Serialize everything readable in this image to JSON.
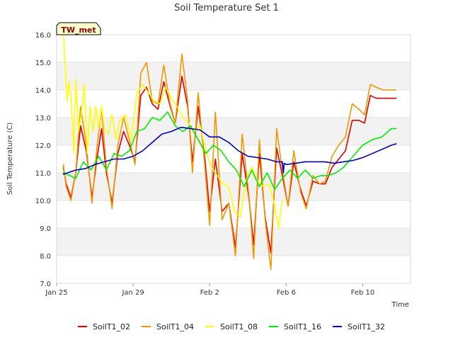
{
  "chart_data": {
    "type": "line",
    "title": "Soil Temperature Set 1",
    "xlabel": "Time",
    "ylabel": "Soil Temperature (C)",
    "badge": "TW_met",
    "ylim": [
      7.0,
      16.0
    ],
    "yticks": [
      "7.0",
      "8.0",
      "9.0",
      "10.0",
      "11.0",
      "12.0",
      "13.0",
      "14.0",
      "15.0",
      "16.0"
    ],
    "xlim": [
      0,
      18.5
    ],
    "xticks": [
      {
        "x": 0,
        "label": "Jan 25"
      },
      {
        "x": 4,
        "label": "Jan 29"
      },
      {
        "x": 8,
        "label": "Feb 2"
      },
      {
        "x": 12,
        "label": "Feb 6"
      },
      {
        "x": 16,
        "label": "Feb 10"
      }
    ],
    "grid": true,
    "legend_position": "bottom",
    "series": [
      {
        "name": "SoilT1_02",
        "color": "#dd0000",
        "x": [
          0.35,
          0.5,
          0.75,
          1.0,
          1.25,
          1.55,
          1.85,
          2.1,
          2.35,
          2.6,
          2.9,
          3.2,
          3.5,
          3.8,
          4.1,
          4.4,
          4.7,
          5.0,
          5.3,
          5.6,
          5.9,
          6.2,
          6.55,
          6.85,
          7.1,
          7.4,
          7.75,
          8.0,
          8.3,
          8.65,
          9.0,
          9.35,
          9.7,
          10.05,
          10.3,
          10.6,
          10.9,
          11.2,
          11.5,
          11.8,
          12.1,
          12.4,
          12.75,
          13.05,
          13.4,
          13.75,
          14.05,
          14.4,
          14.75,
          15.1,
          15.45,
          15.8,
          16.1,
          16.4,
          16.7,
          17.05,
          17.4,
          17.75
        ],
        "values": [
          11.2,
          10.6,
          10.1,
          11.0,
          12.7,
          11.8,
          10.1,
          11.5,
          12.6,
          11.0,
          9.9,
          11.7,
          12.5,
          12.0,
          11.4,
          13.8,
          14.1,
          13.5,
          13.3,
          14.3,
          13.5,
          12.8,
          14.5,
          13.4,
          11.4,
          13.4,
          11.5,
          9.6,
          11.5,
          9.6,
          9.9,
          8.3,
          11.7,
          10.1,
          8.4,
          11.7,
          9.4,
          8.1,
          11.9,
          10.9,
          9.8,
          11.4,
          10.4,
          9.8,
          10.7,
          10.6,
          10.6,
          11.2,
          11.5,
          11.8,
          12.9,
          12.9,
          12.8,
          13.8,
          13.7,
          13.7,
          13.7,
          13.7
        ]
      },
      {
        "name": "SoilT1_04",
        "color": "#ee9900",
        "x": [
          0.35,
          0.5,
          0.75,
          1.0,
          1.25,
          1.55,
          1.85,
          2.1,
          2.35,
          2.6,
          2.9,
          3.2,
          3.5,
          3.8,
          4.1,
          4.4,
          4.7,
          5.0,
          5.3,
          5.6,
          5.9,
          6.2,
          6.55,
          6.85,
          7.1,
          7.4,
          7.75,
          8.0,
          8.3,
          8.65,
          9.0,
          9.35,
          9.7,
          10.05,
          10.3,
          10.6,
          10.9,
          11.2,
          11.5,
          11.8,
          12.1,
          12.4,
          12.75,
          13.05,
          13.4,
          13.75,
          14.05,
          14.4,
          14.75,
          15.1,
          15.45,
          15.8,
          16.1,
          16.4,
          16.7,
          17.05,
          17.4,
          17.75
        ],
        "values": [
          11.3,
          10.5,
          10.0,
          11.0,
          13.4,
          12.0,
          9.9,
          11.9,
          13.3,
          11.2,
          9.7,
          12.0,
          13.0,
          12.2,
          11.3,
          14.6,
          15.0,
          13.6,
          13.5,
          14.9,
          13.6,
          12.8,
          15.3,
          13.6,
          11.0,
          13.9,
          11.2,
          9.1,
          13.2,
          9.3,
          9.9,
          8.0,
          12.4,
          10.2,
          7.9,
          12.2,
          9.3,
          7.5,
          12.6,
          11.1,
          9.8,
          11.8,
          10.3,
          9.7,
          10.9,
          10.6,
          10.7,
          11.6,
          12.0,
          12.3,
          13.5,
          13.3,
          13.1,
          14.2,
          14.1,
          14.0,
          14.0,
          14.0
        ]
      },
      {
        "name": "SoilT1_08",
        "color": "#ffff00",
        "x": [
          0.35,
          0.45,
          0.55,
          0.65,
          0.75,
          0.9,
          1.0,
          1.15,
          1.3,
          1.45,
          1.6,
          1.75,
          1.9,
          2.05,
          2.2,
          2.35,
          2.5,
          2.7,
          2.9,
          3.1,
          3.3,
          3.6,
          3.9,
          4.2,
          4.5,
          4.8,
          5.1,
          5.4,
          5.7,
          6.0,
          6.3,
          6.6,
          6.9,
          7.2,
          7.5,
          7.8,
          8.1,
          8.4,
          8.7,
          9.0,
          9.3,
          9.6,
          9.9,
          10.2,
          10.5,
          10.8,
          11.1,
          11.4,
          11.6,
          11.8
        ],
        "values": [
          16.0,
          14.8,
          13.6,
          14.3,
          13.7,
          11.7,
          14.4,
          12.5,
          13.2,
          14.2,
          11.7,
          13.4,
          12.5,
          13.4,
          12.6,
          13.4,
          12.6,
          12.4,
          13.1,
          12.2,
          12.9,
          13.1,
          12.2,
          13.9,
          14.2,
          13.9,
          13.6,
          13.5,
          14.1,
          13.7,
          13.4,
          13.0,
          12.8,
          12.5,
          12.7,
          11.8,
          11.2,
          10.9,
          10.6,
          10.5,
          9.6,
          9.4,
          10.7,
          11.2,
          10.7,
          10.5,
          10.6,
          9.8,
          9.0,
          10.0
        ]
      },
      {
        "name": "SoilT1_16",
        "color": "#00ee00",
        "x": [
          0.35,
          0.7,
          1.0,
          1.4,
          1.8,
          2.2,
          2.6,
          3.0,
          3.4,
          3.8,
          4.2,
          4.6,
          5.0,
          5.4,
          5.8,
          6.2,
          6.6,
          7.0,
          7.4,
          7.8,
          8.2,
          8.6,
          9.0,
          9.4,
          9.8,
          10.2,
          10.6,
          11.0,
          11.4,
          11.8,
          12.2,
          12.6,
          13.0,
          13.4,
          13.8,
          14.2,
          14.6,
          15.0,
          15.5,
          16.0,
          16.5,
          17.0,
          17.5,
          17.75
        ],
        "values": [
          11.0,
          10.9,
          10.8,
          11.4,
          11.1,
          11.6,
          11.1,
          11.7,
          11.6,
          11.8,
          12.5,
          12.6,
          13.0,
          12.9,
          13.2,
          12.7,
          12.5,
          12.7,
          12.2,
          11.7,
          12.0,
          11.8,
          11.4,
          11.1,
          10.5,
          11.1,
          10.5,
          11.0,
          10.4,
          10.8,
          11.1,
          10.8,
          11.1,
          10.8,
          10.9,
          10.9,
          11.0,
          11.2,
          11.6,
          12.0,
          12.2,
          12.3,
          12.6,
          12.6
        ]
      },
      {
        "name": "SoilT1_32",
        "color": "#0000cc",
        "x": [
          0.35,
          1.0,
          1.5,
          2.0,
          2.5,
          3.0,
          3.5,
          4.0,
          4.5,
          5.0,
          5.5,
          6.0,
          6.5,
          7.0,
          7.5,
          8.0,
          8.5,
          9.0,
          9.5,
          10.0,
          10.5,
          11.0,
          11.5,
          11.8,
          11.85,
          11.9,
          12.0,
          12.5,
          13.0,
          13.5,
          14.0,
          14.5,
          15.0,
          15.5,
          16.0,
          16.5,
          17.0,
          17.5,
          17.75
        ],
        "values": [
          10.95,
          11.1,
          11.15,
          11.3,
          11.4,
          11.5,
          11.5,
          11.6,
          11.8,
          12.1,
          12.4,
          12.5,
          12.65,
          12.6,
          12.55,
          12.3,
          12.3,
          12.1,
          11.8,
          11.6,
          11.55,
          11.5,
          11.4,
          11.4,
          11.0,
          11.35,
          11.3,
          11.35,
          11.4,
          11.4,
          11.4,
          11.35,
          11.4,
          11.45,
          11.55,
          11.7,
          11.85,
          12.0,
          12.05
        ]
      }
    ]
  }
}
